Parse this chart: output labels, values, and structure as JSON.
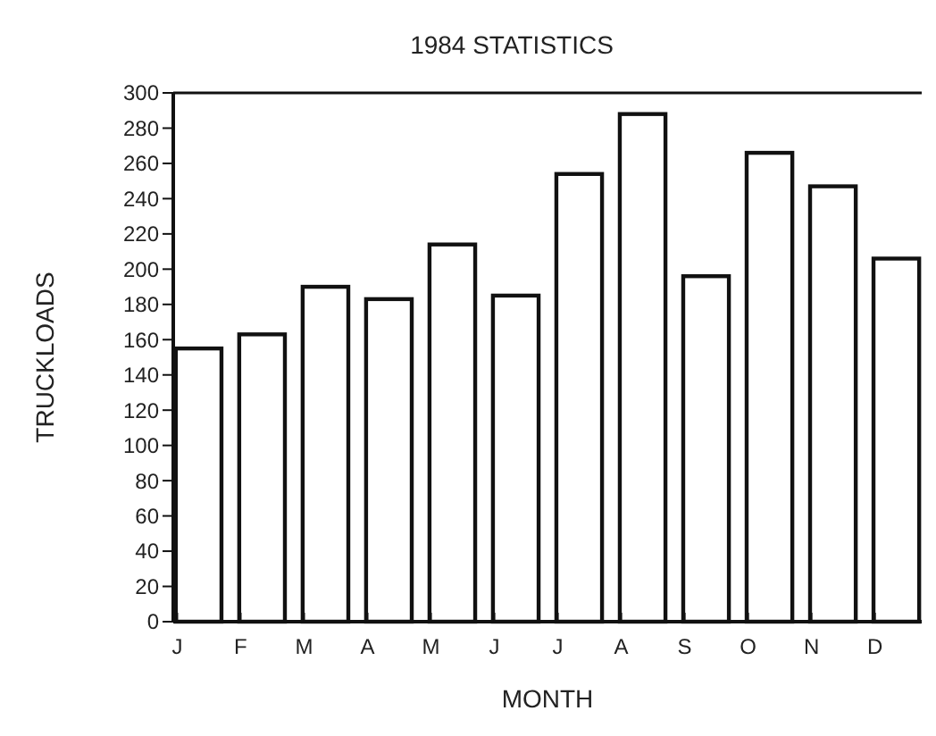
{
  "chart_data": {
    "type": "bar",
    "title": "1984 STATISTICS",
    "xlabel": "MONTH",
    "ylabel": "TRUCKLOADS",
    "categories": [
      "J",
      "F",
      "M",
      "A",
      "M",
      "J",
      "J",
      "A",
      "S",
      "O",
      "N",
      "D"
    ],
    "values": [
      155,
      163,
      190,
      183,
      214,
      185,
      254,
      288,
      196,
      266,
      247,
      206
    ],
    "color": "#ffffff",
    "ylim": [
      0,
      300
    ],
    "yticks": [
      0,
      20,
      40,
      60,
      80,
      100,
      120,
      140,
      160,
      180,
      200,
      220,
      240,
      260,
      280,
      300
    ],
    "grid": false
  }
}
